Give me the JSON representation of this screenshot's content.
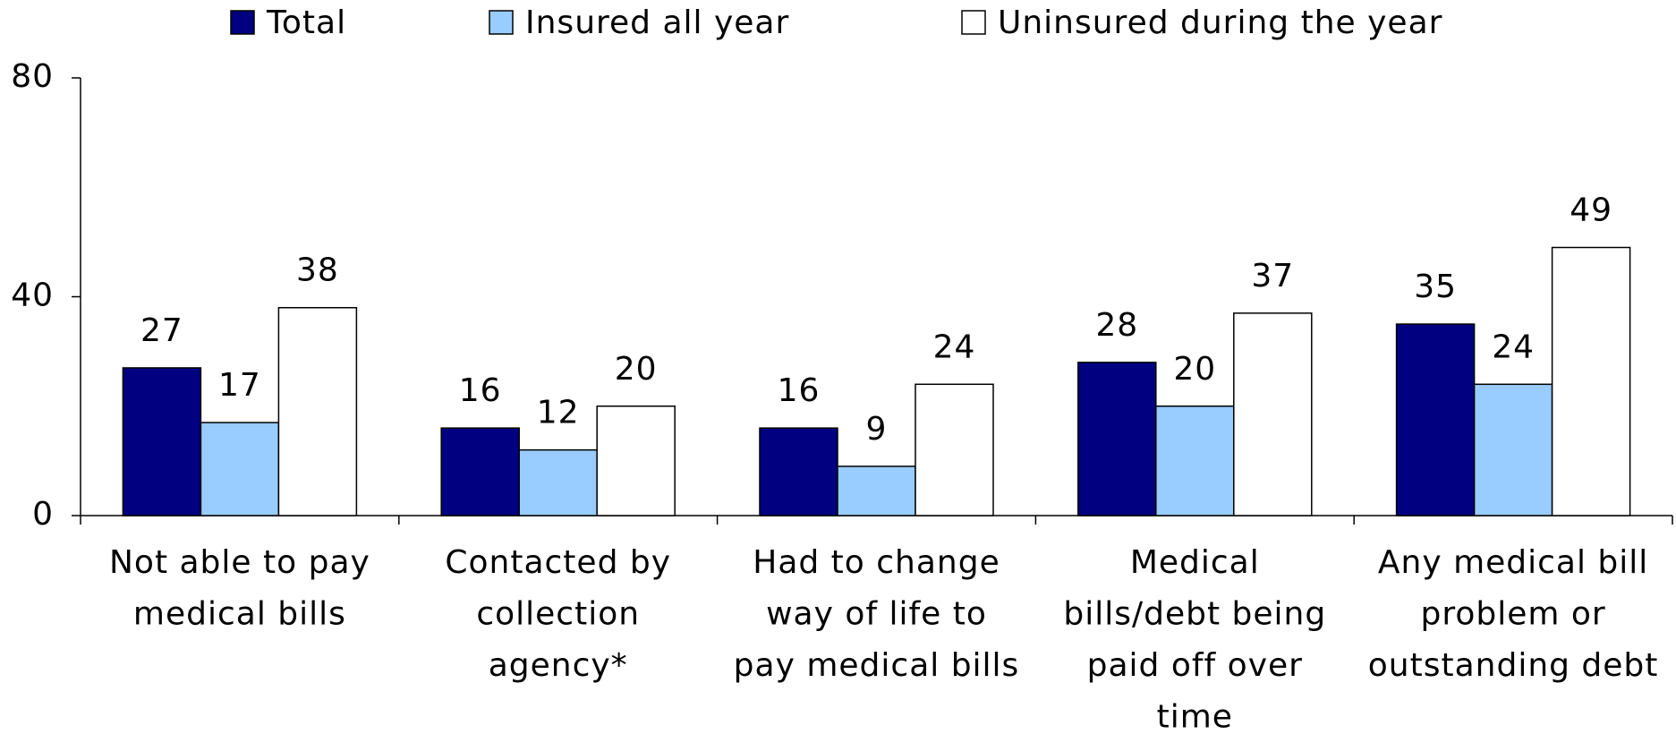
{
  "chart_data": {
    "type": "bar",
    "categories": [
      [
        "Not able to pay",
        "medical bills"
      ],
      [
        "Contacted by",
        "collection",
        "agency*"
      ],
      [
        "Had to change",
        "way of life to",
        "pay medical bills"
      ],
      [
        "Medical",
        "bills/debt being",
        "paid off over",
        "time"
      ],
      [
        "Any medical bill",
        "problem or",
        "outstanding debt"
      ]
    ],
    "series": [
      {
        "name": "Total",
        "color": "#000080",
        "values": [
          27,
          16,
          16,
          28,
          35
        ]
      },
      {
        "name": "Insured all year",
        "color": "#99ccff",
        "values": [
          17,
          12,
          9,
          20,
          24
        ]
      },
      {
        "name": "Uninsured during the year",
        "color": "#ffffff",
        "values": [
          38,
          20,
          24,
          37,
          49
        ]
      }
    ],
    "ylim": [
      0,
      80
    ],
    "yticks": [
      0,
      40,
      80
    ],
    "grid": false,
    "legend": "top"
  }
}
